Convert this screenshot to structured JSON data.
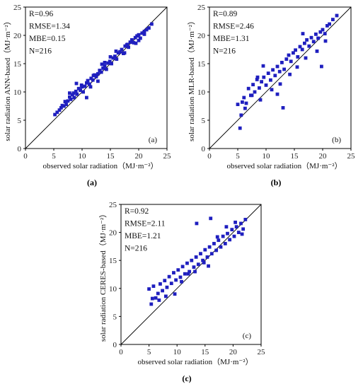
{
  "chart_data": [
    {
      "type": "scatter",
      "xlabel": "observed solar radiation（MJ·m⁻²）",
      "ylabel": "solar radiation ANN-based（MJ·m⁻²）",
      "xlim": [
        0,
        25
      ],
      "ylim": [
        0,
        25
      ],
      "ticks": [
        "0",
        "5",
        "10",
        "15",
        "20",
        "25"
      ],
      "stats": [
        "R=0.96",
        "RMSE=1.34",
        "MBE=0.15",
        "N=216"
      ],
      "panel_label": "(a)",
      "caption": "(a)",
      "color": "#1f1fbf",
      "reference_line": "1:1",
      "points_x": [
        5.2,
        5.6,
        6.0,
        6.3,
        6.8,
        7.0,
        7.2,
        7.5,
        7.8,
        8.0,
        8.3,
        8.6,
        8.9,
        9.1,
        9.4,
        9.7,
        9.9,
        10.2,
        10.5,
        10.8,
        11.0,
        11.3,
        11.6,
        11.9,
        12.2,
        12.5,
        12.8,
        13.1,
        13.4,
        13.7,
        14.0,
        14.3,
        14.6,
        14.9,
        15.2,
        15.5,
        15.8,
        16.1,
        16.4,
        16.7,
        17.0,
        17.3,
        17.6,
        17.9,
        18.2,
        18.5,
        18.8,
        19.1,
        19.4,
        19.7,
        20.0,
        20.3,
        20.6,
        21.0,
        21.4,
        21.8,
        22.3,
        6.5,
        8.5,
        10.0,
        12.0,
        14.0,
        16.0,
        18.0,
        20.0,
        9.0,
        11.5,
        13.5,
        17.5,
        19.5,
        7.8,
        10.8,
        15.0,
        12.8,
        21.0
      ],
      "points_y": [
        6.0,
        6.4,
        6.8,
        7.2,
        7.5,
        8.3,
        7.8,
        8.4,
        9.1,
        8.7,
        9.5,
        9.0,
        10.1,
        9.6,
        10.6,
        10.3,
        11.2,
        10.0,
        11.0,
        11.6,
        12.0,
        11.4,
        12.4,
        12.1,
        13.0,
        12.7,
        13.2,
        13.8,
        13.5,
        14.2,
        14.6,
        14.0,
        15.1,
        15.4,
        15.0,
        16.0,
        16.3,
        15.8,
        16.9,
        17.1,
        17.5,
        16.8,
        18.1,
        18.3,
        17.9,
        18.8,
        19.2,
        18.7,
        19.6,
        19.9,
        20.1,
        19.5,
        20.4,
        20.7,
        21.0,
        21.3,
        22.0,
        7.6,
        9.8,
        10.9,
        12.9,
        15.2,
        17.2,
        18.4,
        19.1,
        11.5,
        10.9,
        14.9,
        16.9,
        18.6,
        9.8,
        9.0,
        16.2,
        11.9,
        20.2
      ]
    },
    {
      "type": "scatter",
      "xlabel": "observed solar radiation（MJ·m⁻²）",
      "ylabel": "solar radiation MLR-based（MJ·m⁻²）",
      "xlim": [
        0,
        25
      ],
      "ylim": [
        0,
        25
      ],
      "ticks": [
        "0",
        "5",
        "10",
        "15",
        "20",
        "25"
      ],
      "stats": [
        "R=0.89",
        "RMSE=2.46",
        "MBE=1.31",
        "N=216"
      ],
      "panel_label": "(b)",
      "caption": "(b)",
      "color": "#1f1fbf",
      "reference_line": "1:1",
      "points_x": [
        5.0,
        5.4,
        5.8,
        6.1,
        6.5,
        6.9,
        7.3,
        7.7,
        8.0,
        8.4,
        8.8,
        9.2,
        9.6,
        10.0,
        10.4,
        10.8,
        11.2,
        11.6,
        12.0,
        12.4,
        12.8,
        13.2,
        13.6,
        14.0,
        14.4,
        14.8,
        15.2,
        15.6,
        16.0,
        16.4,
        16.8,
        17.2,
        17.6,
        18.0,
        18.4,
        18.8,
        19.2,
        19.6,
        20.0,
        20.4,
        20.8,
        21.2,
        21.8,
        22.5,
        5.6,
        6.3,
        7.5,
        9.0,
        11.0,
        12.5,
        14.2,
        15.5,
        17.0,
        19.0,
        20.5,
        9.5,
        12.0,
        16.5,
        19.8,
        8.5,
        13.0
      ],
      "points_y": [
        7.8,
        3.6,
        8.2,
        9.0,
        8.0,
        10.6,
        9.4,
        11.3,
        10.0,
        12.2,
        10.7,
        11.8,
        12.6,
        11.2,
        13.3,
        12.1,
        13.9,
        12.9,
        14.5,
        13.6,
        15.2,
        14.0,
        15.8,
        16.5,
        15.4,
        16.9,
        17.4,
        16.2,
        18.0,
        17.5,
        18.6,
        19.2,
        18.1,
        19.6,
        18.9,
        20.2,
        19.5,
        20.6,
        21.0,
        20.3,
        21.7,
        22.0,
        22.8,
        23.5,
        5.9,
        7.1,
        9.4,
        8.6,
        10.4,
        11.4,
        13.1,
        14.4,
        16.0,
        17.2,
        19.0,
        14.6,
        9.6,
        20.3,
        14.5,
        12.6,
        7.2
      ]
    },
    {
      "type": "scatter",
      "xlabel": "observed solar radiation（MJ·m⁻²）",
      "ylabel": "solar radiation CERES-based（MJ·m⁻²）",
      "xlim": [
        0,
        25
      ],
      "ylim": [
        0,
        25
      ],
      "ticks": [
        "0",
        "5",
        "10",
        "15",
        "20",
        "25"
      ],
      "stats": [
        "R=0.92",
        "RMSE=2.11",
        "MBE=1.21",
        "N=216"
      ],
      "panel_label": "(c)",
      "caption": "(c)",
      "color": "#1f1fbf",
      "reference_line": "1:1",
      "points_x": [
        5.0,
        5.4,
        5.8,
        6.2,
        6.6,
        7.0,
        7.4,
        7.8,
        8.2,
        8.6,
        9.0,
        9.4,
        9.8,
        10.2,
        10.6,
        11.0,
        11.4,
        11.8,
        12.2,
        12.6,
        13.0,
        13.4,
        13.8,
        14.2,
        14.6,
        15.0,
        15.4,
        15.8,
        16.2,
        16.6,
        17.0,
        17.4,
        17.8,
        18.2,
        18.6,
        19.0,
        19.4,
        19.8,
        20.2,
        20.6,
        21.0,
        21.4,
        21.8,
        22.2,
        5.6,
        6.8,
        8.0,
        9.6,
        10.8,
        12.0,
        13.2,
        14.8,
        15.6,
        17.2,
        18.8,
        20.4,
        21.6,
        13.5,
        16.0
      ],
      "points_y": [
        9.9,
        7.2,
        10.4,
        8.3,
        9.1,
        10.8,
        9.6,
        11.4,
        10.2,
        12.1,
        10.9,
        12.8,
        11.5,
        13.3,
        12.0,
        13.9,
        12.6,
        14.5,
        13.0,
        15.0,
        13.8,
        15.6,
        14.3,
        16.2,
        15.0,
        16.9,
        15.6,
        17.4,
        16.2,
        18.0,
        16.8,
        18.6,
        17.4,
        19.3,
        18.0,
        19.8,
        18.7,
        20.5,
        19.3,
        21.0,
        20.0,
        21.6,
        20.6,
        22.3,
        8.2,
        7.9,
        8.6,
        9.0,
        11.2,
        12.6,
        13.0,
        14.6,
        14.0,
        19.2,
        21.0,
        21.8,
        19.7,
        21.6,
        22.5
      ]
    }
  ]
}
